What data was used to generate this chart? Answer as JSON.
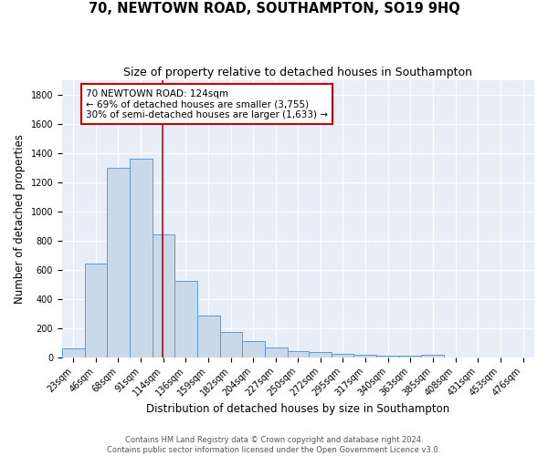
{
  "title": "70, NEWTOWN ROAD, SOUTHAMPTON, SO19 9HQ",
  "subtitle": "Size of property relative to detached houses in Southampton",
  "xlabel": "Distribution of detached houses by size in Southampton",
  "ylabel": "Number of detached properties",
  "categories": [
    "23sqm",
    "46sqm",
    "68sqm",
    "91sqm",
    "114sqm",
    "136sqm",
    "159sqm",
    "182sqm",
    "204sqm",
    "227sqm",
    "250sqm",
    "272sqm",
    "295sqm",
    "317sqm",
    "340sqm",
    "363sqm",
    "385sqm",
    "408sqm",
    "431sqm",
    "453sqm",
    "476sqm"
  ],
  "values": [
    60,
    640,
    1300,
    1360,
    840,
    525,
    285,
    175,
    110,
    70,
    40,
    35,
    25,
    15,
    10,
    10,
    20,
    0,
    0,
    0,
    0
  ],
  "bar_color": "#c9d9ea",
  "bar_edge_color": "#5b9bd5",
  "red_line_x": 124,
  "bin_edges": [
    23,
    46,
    68,
    91,
    114,
    136,
    159,
    182,
    204,
    227,
    250,
    272,
    295,
    317,
    340,
    363,
    385,
    408,
    431,
    453,
    476,
    499
  ],
  "ylim": [
    0,
    1900
  ],
  "yticks": [
    0,
    200,
    400,
    600,
    800,
    1000,
    1200,
    1400,
    1600,
    1800
  ],
  "annotation_text": "70 NEWTOWN ROAD: 124sqm\n← 69% of detached houses are smaller (3,755)\n30% of semi-detached houses are larger (1,633) →",
  "annotation_box_color": "#ffffff",
  "annotation_box_edge_color": "#cc0000",
  "background_color": "#e8eef8",
  "grid_color": "#ffffff",
  "footer_line1": "Contains HM Land Registry data © Crown copyright and database right 2024.",
  "footer_line2": "Contains public sector information licensed under the Open Government Licence v3.0.",
  "title_fontsize": 10.5,
  "subtitle_fontsize": 9,
  "xlabel_fontsize": 8.5,
  "ylabel_fontsize": 8.5,
  "tick_fontsize": 7,
  "annotation_fontsize": 7.5,
  "footer_fontsize": 6
}
